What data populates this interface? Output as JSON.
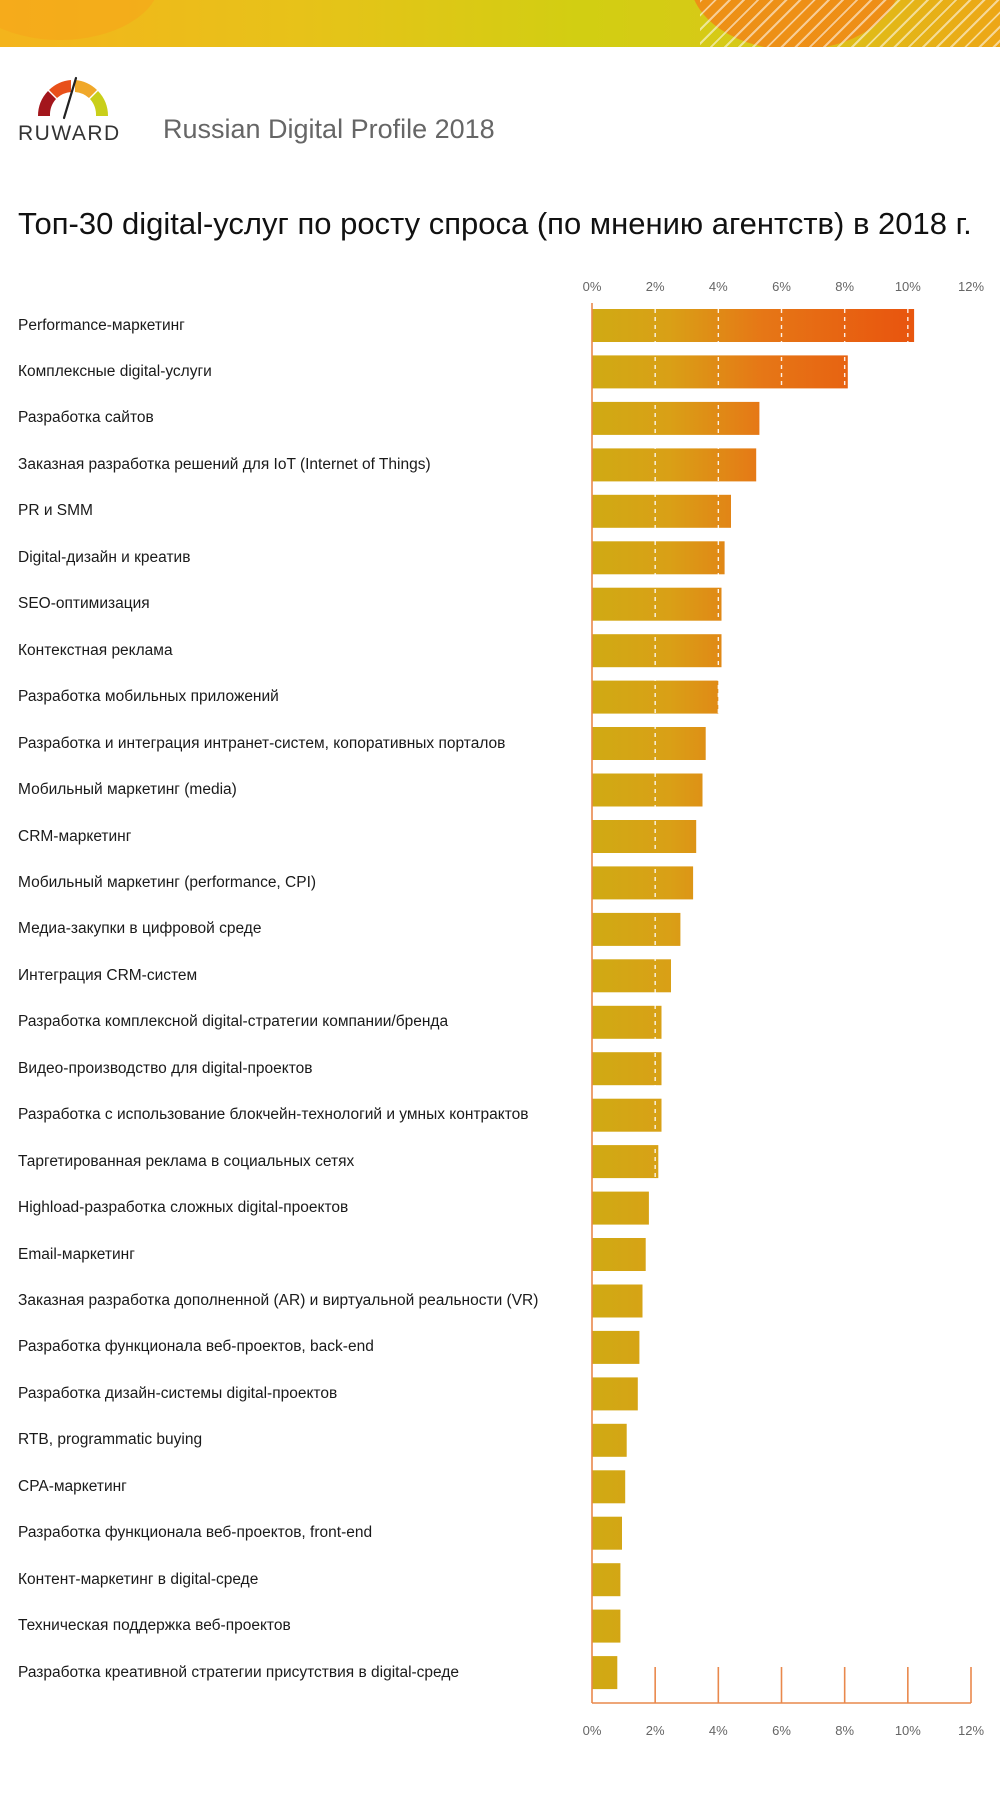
{
  "header": {
    "brand": "RUWARD",
    "subtitle": "Russian Digital Profile 2018"
  },
  "colors": {
    "bar_start": "#d0aa14",
    "bar_end": "#e8570f",
    "axis": "#e9884c",
    "tick_text": "#666666"
  },
  "chart_data": {
    "type": "bar",
    "orientation": "horizontal",
    "title": "Топ-30 digital-услуг по росту спроса (по мнению агентств) в 2018 г.",
    "xlabel": "",
    "ylabel": "",
    "xlim": [
      0,
      12
    ],
    "ticks": [
      "0%",
      "2%",
      "4%",
      "6%",
      "8%",
      "10%",
      "12%"
    ],
    "grid": true,
    "categories": [
      "Performance-маркетинг",
      "Комплексные digital-услуги",
      "Разработка сайтов",
      "Заказная разработка решений для IoT (Internet of Things)",
      "PR и SMM",
      "Digital-дизайн и креатив",
      "SEO-оптимизация",
      "Контекстная реклама",
      "Разработка мобильных приложений",
      "Разработка и интеграция интранет-систем, копоративных порталов",
      "Мобильный маркетинг (media)",
      "CRM-маркетинг",
      "Мобильный маркетинг (performance, CPI)",
      "Медиа-закупки в цифровой среде",
      "Интеграция CRM-систем",
      "Разработка комплексной digital-стратегии компании/бренда",
      "Видео-производство для digital-проектов",
      "Разработка с использование блокчейн-технологий и умных контрактов",
      "Таргетированная реклама в социальных сетях",
      "Highload-разработка сложных digital-проектов",
      "Email-маркетинг",
      "Заказная разработка дополненной (AR) и виртуальной реальности (VR)",
      "Разработка функционала веб-проектов, back-end",
      "Разработка дизайн-системы digital-проектов",
      "RTB, programmatic buying",
      "CPA-маркетинг",
      "Разработка функционала веб-проектов, front-end",
      "Контент-маркетинг в digital-среде",
      "Техническая поддержка веб-проектов",
      "Разработка креативной стратегии присутствия в digital-среде"
    ],
    "values": [
      10.2,
      8.1,
      5.3,
      5.2,
      4.4,
      4.2,
      4.1,
      4.1,
      4.0,
      3.6,
      3.5,
      3.3,
      3.2,
      2.8,
      2.5,
      2.2,
      2.2,
      2.2,
      2.1,
      1.8,
      1.7,
      1.6,
      1.5,
      1.45,
      1.1,
      1.05,
      0.95,
      0.9,
      0.9,
      0.8
    ]
  }
}
